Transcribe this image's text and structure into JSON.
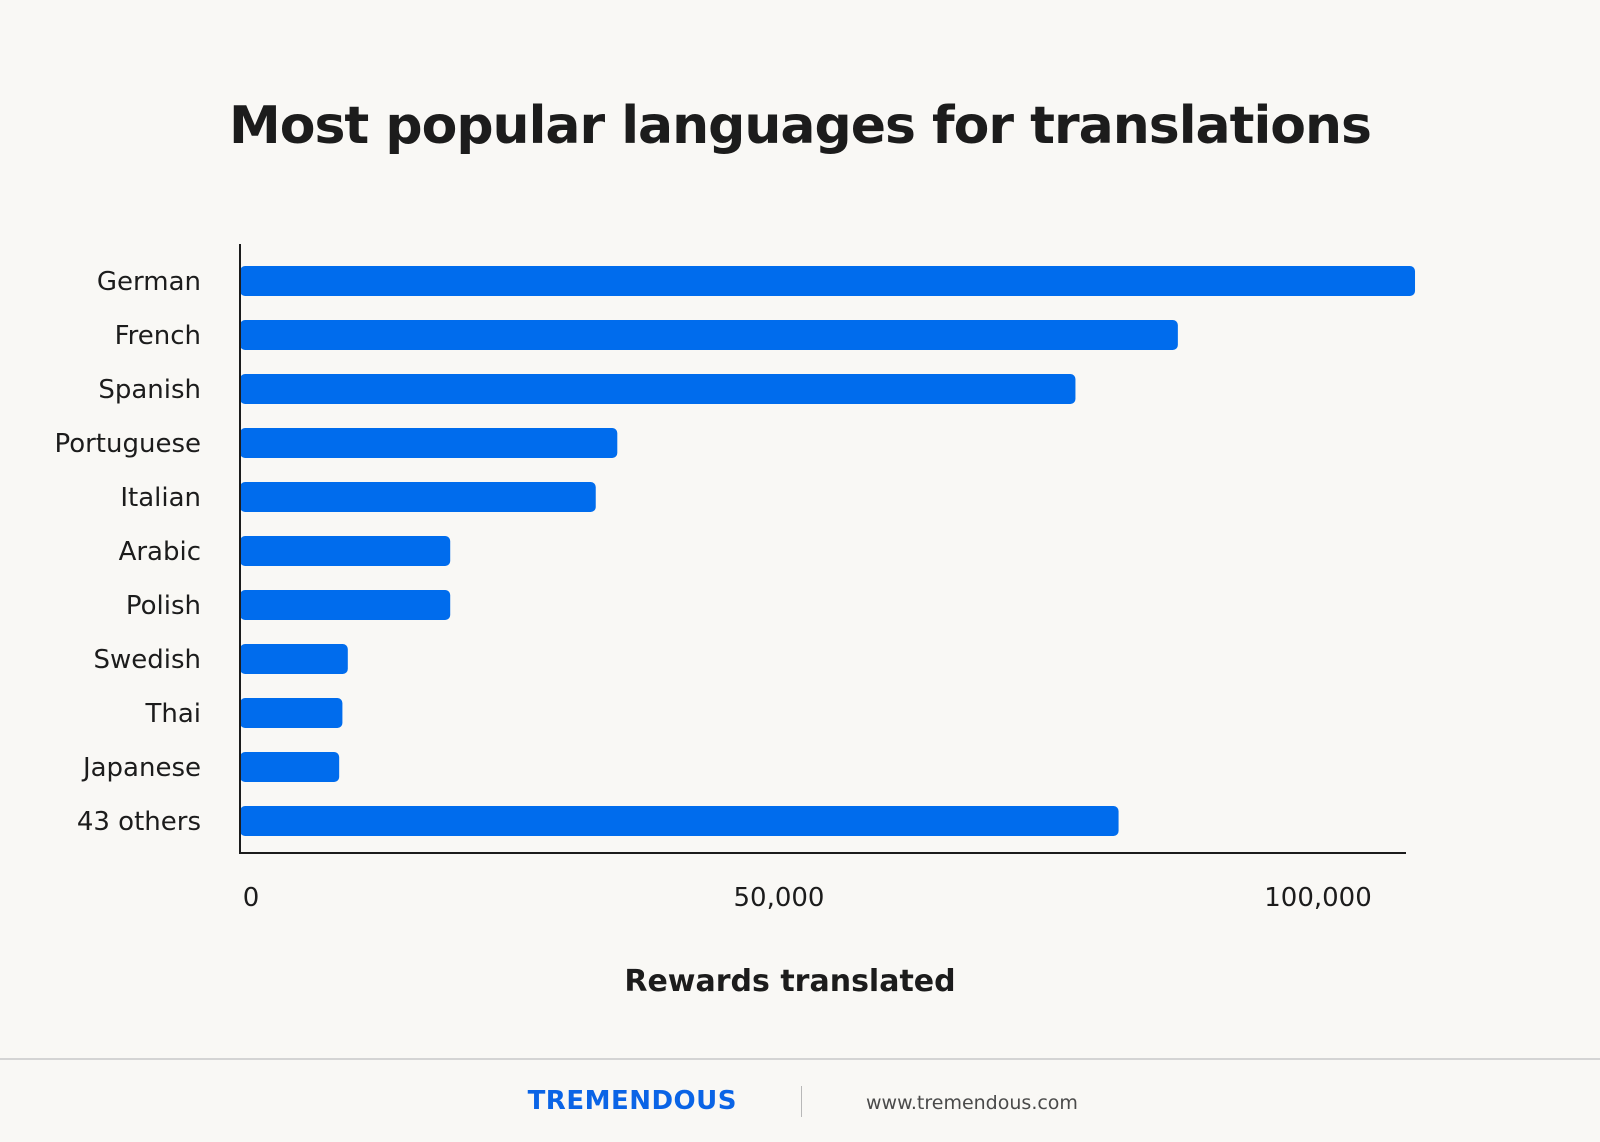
{
  "chart_data": {
    "type": "bar",
    "orientation": "horizontal",
    "title": "Most popular languages for translations",
    "xlabel": "Rewards translated",
    "ylabel": "",
    "categories": [
      "German",
      "French",
      "Spanish",
      "Portuguese",
      "Italian",
      "Arabic",
      "Polish",
      "Swedish",
      "Thai",
      "Japanese",
      "43 others"
    ],
    "values": [
      109000,
      87000,
      77500,
      35000,
      33000,
      19500,
      19500,
      10000,
      9500,
      9200,
      81500
    ],
    "xlim": [
      0,
      100000
    ],
    "xticks": [
      0,
      50000,
      100000
    ],
    "xtick_labels": [
      "0",
      "50,000",
      "100,000"
    ],
    "bar_color": "#006ced",
    "grid": false,
    "legend": "none"
  },
  "footer": {
    "brand": "TREMENDOUS",
    "website": "www.tremendous.com"
  }
}
